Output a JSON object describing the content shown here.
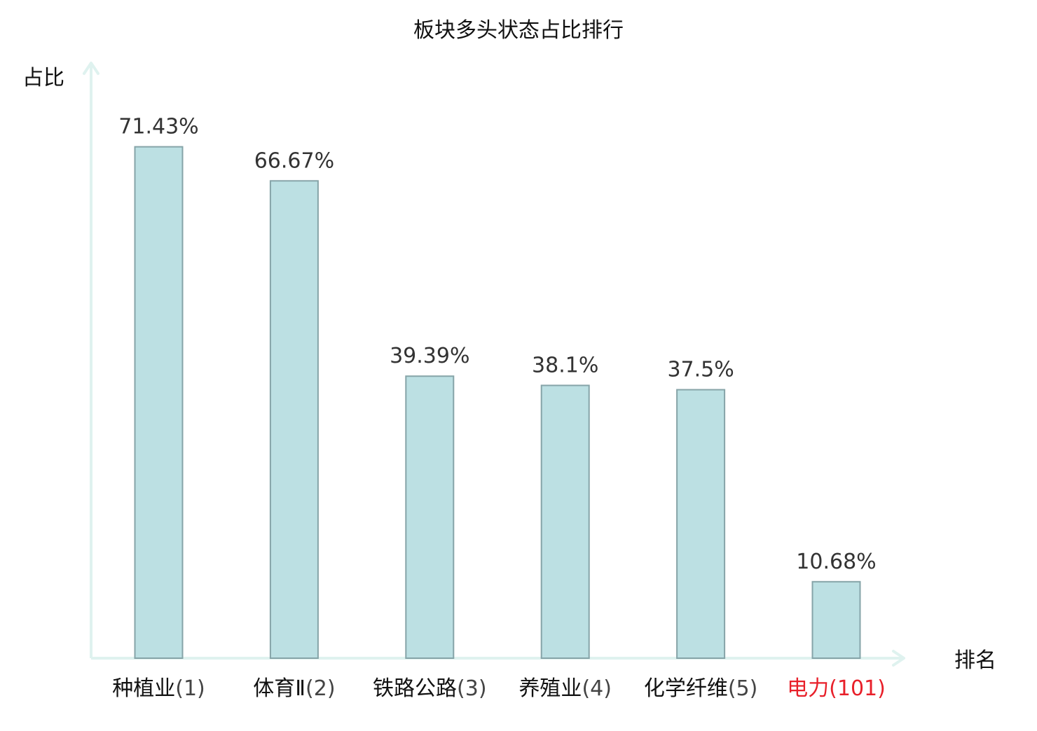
{
  "chart_data": {
    "type": "bar",
    "title": "板块多头状态占比排行",
    "xlabel": "排名",
    "ylabel": "占比",
    "categories": [
      {
        "name": "种植业",
        "rank": "(1)",
        "highlight": false
      },
      {
        "name": "体育Ⅱ",
        "rank": "(2)",
        "highlight": false
      },
      {
        "name": "铁路公路",
        "rank": "(3)",
        "highlight": false
      },
      {
        "name": "养殖业",
        "rank": "(4)",
        "highlight": false
      },
      {
        "name": "化学纤维",
        "rank": "(5)",
        "highlight": false
      },
      {
        "name": "电力",
        "rank": "(101)",
        "highlight": true
      }
    ],
    "values": [
      71.43,
      66.67,
      39.39,
      38.1,
      37.5,
      10.68
    ],
    "value_labels": [
      "71.43%",
      "66.67%",
      "39.39%",
      "38.1%",
      "37.5%",
      "10.68%"
    ],
    "ylim": [
      0,
      80
    ],
    "grid": false,
    "colors": {
      "bar_fill": "#bce0e3",
      "bar_stroke": "#86a4a8",
      "axis": "#dff2ef",
      "text": "#333333",
      "category_text": "#111111",
      "rank_text": "#444444",
      "highlight": "#e8202a"
    }
  }
}
